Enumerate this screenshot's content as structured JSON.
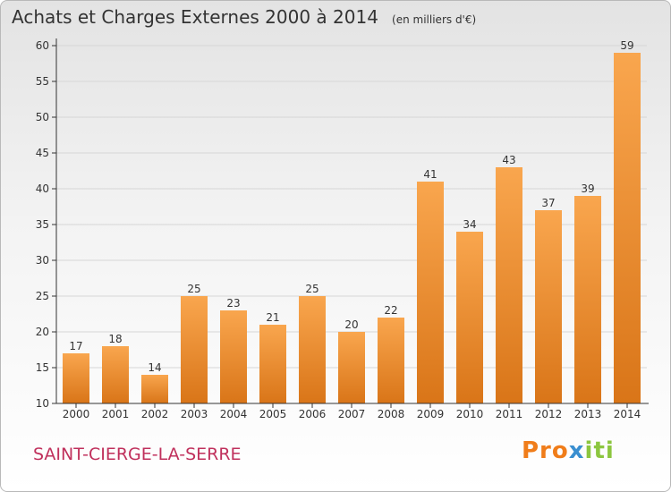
{
  "title": "Achats et Charges Externes 2000 à 2014",
  "subtitle": "(en milliers d'€)",
  "commune": "SAINT-CIERGE-LA-SERRE",
  "logo_text": "Proxiti",
  "colors": {
    "bar_top": "#f9a64e",
    "bar_bottom": "#d97518",
    "axis": "#333333",
    "grid": "#d6d6d6",
    "commune": "#c0305c"
  },
  "chart_data": {
    "type": "bar",
    "title": "Achats et Charges Externes 2000 à 2014",
    "subtitle": "(en milliers d'€)",
    "categories": [
      "2000",
      "2001",
      "2002",
      "2003",
      "2004",
      "2005",
      "2006",
      "2007",
      "2008",
      "2009",
      "2010",
      "2011",
      "2012",
      "2013",
      "2014"
    ],
    "values": [
      17,
      18,
      14,
      25,
      23,
      21,
      25,
      20,
      22,
      41,
      34,
      43,
      37,
      39,
      59
    ],
    "ylim": [
      10,
      60
    ],
    "yticks": [
      10,
      15,
      20,
      25,
      30,
      35,
      40,
      45,
      50,
      55,
      60
    ],
    "grid": true,
    "data_labels": true
  }
}
